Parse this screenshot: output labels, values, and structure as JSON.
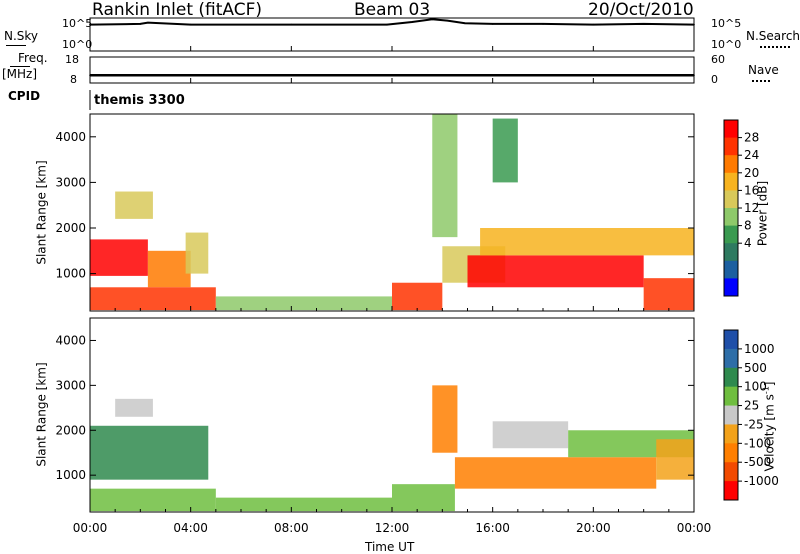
{
  "header": {
    "station": "Rankin Inlet (fitACF)",
    "beam": "Beam 03",
    "date": "20/Oct/2010"
  },
  "top_panels": {
    "nsky_label": "N.Sky",
    "nsearch_label": "N.Search",
    "nsky_ticks": [
      "10^5",
      "10^0"
    ],
    "nsearch_ticks": [
      "10^5",
      "10^0"
    ],
    "freq_label": "Freq.",
    "freq_unit": "[MHz]",
    "freq_ticks": [
      "18",
      "8"
    ],
    "nave_label": "Nave",
    "nave_ticks": [
      "60",
      "0"
    ],
    "cpid_label": "CPID",
    "cpid_value": "themis 3300"
  },
  "power_scale": {
    "label": "Power [dB]",
    "ticks": [
      "28",
      "24",
      "20",
      "16",
      "12",
      "8",
      "4"
    ],
    "colors": [
      "#ff0000",
      "#ff3300",
      "#ff7a00",
      "#f7b31f",
      "#d8c95a",
      "#8ec96a",
      "#3a9a50",
      "#2e7a60",
      "#1c5fa0",
      "#0000ff"
    ]
  },
  "velocity_scale": {
    "label": "Velocity [m s",
    "label_sup": "-1",
    "label_close": "]",
    "ticks": [
      "1000",
      "500",
      "100",
      "25",
      "-25",
      "-100",
      "-500",
      "-1000"
    ],
    "colors": [
      "#1f4fa8",
      "#2e6ea8",
      "#2f8a4e",
      "#6fbe3f",
      "#c8c8c8",
      "#f3a21a",
      "#ff7f00",
      "#f24a00",
      "#ff0000"
    ]
  },
  "chart_data": [
    {
      "type": "line",
      "name": "nsky_nsearch",
      "x_ticks": [
        "00:00",
        "04:00",
        "08:00",
        "12:00",
        "16:00",
        "20:00",
        "00:00"
      ],
      "x": [
        0,
        2,
        2.3,
        4,
        8,
        11.8,
        12.8,
        13.6,
        14.2,
        14.9,
        16,
        18,
        20,
        22,
        24
      ],
      "y": [
        4.0,
        4.1,
        4.3,
        4.0,
        4.0,
        4.0,
        4.4,
        4.8,
        4.6,
        4.2,
        4.1,
        4.1,
        4.0,
        4.1,
        4.0
      ],
      "ylim": [
        0,
        5
      ],
      "scale": "log"
    },
    {
      "type": "line",
      "name": "freq_nave",
      "x": [
        0,
        4,
        8,
        12,
        16,
        20,
        24
      ],
      "y": [
        11.0,
        11.0,
        11.0,
        11.0,
        11.0,
        11.0,
        11.0
      ],
      "ylim": [
        8,
        18
      ]
    },
    {
      "type": "heatmap",
      "name": "power",
      "xlabel": "",
      "ylabel": "Slant Range [km]",
      "xlim": [
        0,
        24
      ],
      "ylim": [
        180,
        4500
      ],
      "y_ticks": [
        1000,
        2000,
        3000,
        4000
      ],
      "colorbar": "Power [dB]",
      "regions": [
        {
          "x": [
            0.0,
            2.3
          ],
          "y": [
            950,
            1750
          ],
          "value": 28
        },
        {
          "x": [
            2.3,
            4.0
          ],
          "y": [
            700,
            1500
          ],
          "value": 20
        },
        {
          "x": [
            3.8,
            4.7
          ],
          "y": [
            1000,
            1900
          ],
          "value": 12
        },
        {
          "x": [
            0.0,
            5.0
          ],
          "y": [
            200,
            700
          ],
          "value": 24
        },
        {
          "x": [
            5.0,
            12.0
          ],
          "y": [
            200,
            500
          ],
          "value": 8
        },
        {
          "x": [
            12.0,
            14.0
          ],
          "y": [
            200,
            800
          ],
          "value": 24
        },
        {
          "x": [
            14.0,
            16.5
          ],
          "y": [
            800,
            1600
          ],
          "value": 12
        },
        {
          "x": [
            15.0,
            22.0
          ],
          "y": [
            700,
            1400
          ],
          "value": 28
        },
        {
          "x": [
            15.5,
            24.0
          ],
          "y": [
            1400,
            2000
          ],
          "value": 16
        },
        {
          "x": [
            22.0,
            24.0
          ],
          "y": [
            200,
            900
          ],
          "value": 26
        },
        {
          "x": [
            1.0,
            2.5
          ],
          "y": [
            2200,
            2800
          ],
          "value": 12
        },
        {
          "x": [
            13.6,
            14.6
          ],
          "y": [
            1800,
            4500
          ],
          "value": 8
        },
        {
          "x": [
            16.0,
            17.0
          ],
          "y": [
            3000,
            4400
          ],
          "value": 6
        }
      ]
    },
    {
      "type": "heatmap",
      "name": "velocity",
      "xlabel": "Time UT",
      "ylabel": "Slant Range [km]",
      "xlim": [
        0,
        24
      ],
      "ylim": [
        180,
        4500
      ],
      "y_ticks": [
        1000,
        2000,
        3000,
        4000
      ],
      "colorbar": "Velocity [m s-1]",
      "regions": [
        {
          "x": [
            0.0,
            4.7
          ],
          "y": [
            900,
            2100
          ],
          "value": 300
        },
        {
          "x": [
            0.0,
            5.0
          ],
          "y": [
            200,
            700
          ],
          "value": 60
        },
        {
          "x": [
            5.0,
            12.0
          ],
          "y": [
            200,
            500
          ],
          "value": 40
        },
        {
          "x": [
            12.0,
            14.5
          ],
          "y": [
            200,
            800
          ],
          "value": 80
        },
        {
          "x": [
            14.5,
            22.5
          ],
          "y": [
            700,
            1400
          ],
          "value": -300
        },
        {
          "x": [
            16.0,
            19.0
          ],
          "y": [
            1600,
            2200
          ],
          "value": 0
        },
        {
          "x": [
            19.0,
            24.0
          ],
          "y": [
            1400,
            2000
          ],
          "value": 60
        },
        {
          "x": [
            22.5,
            24.0
          ],
          "y": [
            900,
            1800
          ],
          "value": -80
        },
        {
          "x": [
            1.0,
            2.5
          ],
          "y": [
            2300,
            2700
          ],
          "value": 0
        },
        {
          "x": [
            13.6,
            14.6
          ],
          "y": [
            1500,
            3000
          ],
          "value": -300
        }
      ]
    }
  ]
}
